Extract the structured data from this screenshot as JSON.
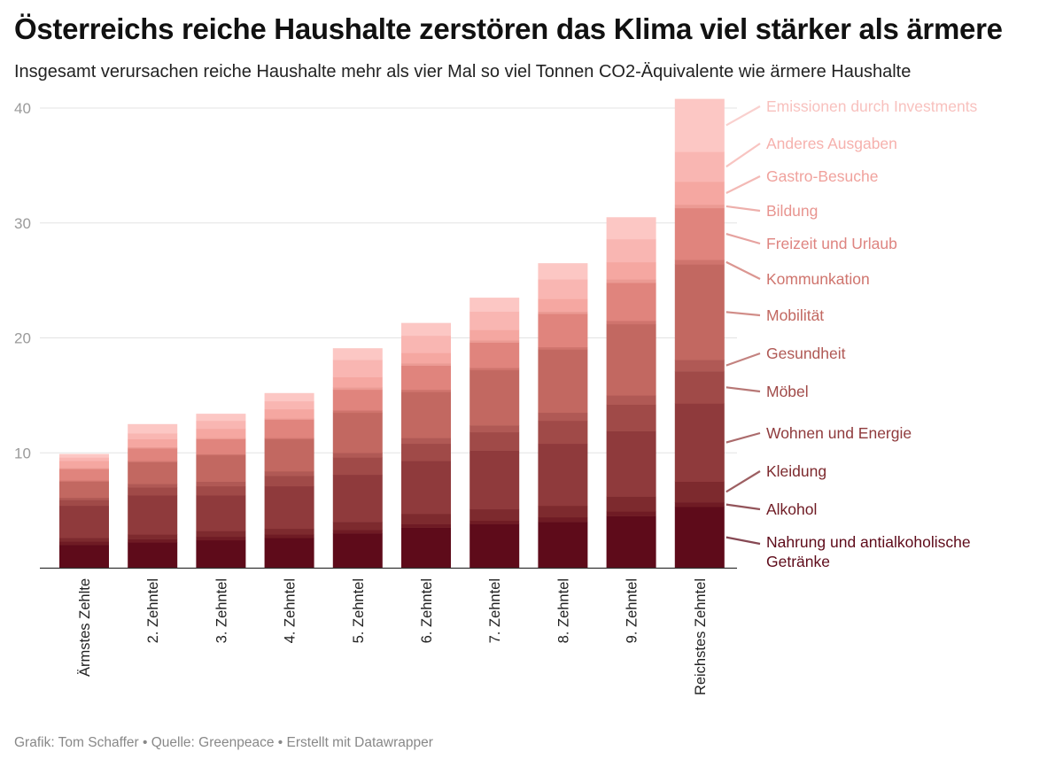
{
  "title": "Österreichs reiche Haushalte zerstören das Klima viel stärker als ärmere",
  "subtitle": "Insgesamt verursachen reiche Haushalte mehr als vier Mal so viel Tonnen CO2-Äquivalente wie ärmere Haushalte",
  "footer": "Grafik: Tom Schaffer • Quelle: Greenpeace • Erstellt mit Datawrapper",
  "chart_data": {
    "type": "bar",
    "stacked": true,
    "title": "Österreichs reiche Haushalte zerstören das Klima viel stärker als ärmere",
    "xlabel": "",
    "ylabel": "",
    "ylim": [
      0,
      40.8
    ],
    "yticks": [
      10,
      20,
      30,
      40
    ],
    "grid": true,
    "categories": [
      "Ärmstes Zehlte",
      "2. Zehntel",
      "3. Zehntel",
      "4. Zehntel",
      "5. Zehntel",
      "6. Zehntel",
      "7. Zehntel",
      "8. Zehntel",
      "9. Zehntel",
      "Reichstes Zehntel"
    ],
    "series": [
      {
        "name": "Nahrung und antialkoholische Getränke",
        "color": "#5e0b1a",
        "label_color": "#5e0b1a",
        "values": [
          2.0,
          2.2,
          2.4,
          2.6,
          3.0,
          3.5,
          3.8,
          4.0,
          4.5,
          5.3
        ]
      },
      {
        "name": "Alkohol",
        "color": "#6f1b24",
        "label_color": "#6f1b24",
        "values": [
          0.3,
          0.3,
          0.3,
          0.3,
          0.3,
          0.3,
          0.3,
          0.4,
          0.4,
          0.4
        ]
      },
      {
        "name": "Kleidung",
        "color": "#7d2a2e",
        "label_color": "#7d2a2e",
        "values": [
          0.3,
          0.4,
          0.5,
          0.5,
          0.7,
          0.9,
          1.0,
          1.0,
          1.3,
          1.8
        ]
      },
      {
        "name": "Wohnen und Energie",
        "color": "#8f3a3c",
        "label_color": "#8f3a3c",
        "values": [
          2.8,
          3.4,
          3.1,
          3.7,
          4.1,
          4.6,
          5.1,
          5.4,
          5.7,
          6.8
        ]
      },
      {
        "name": "Möbel",
        "color": "#a04a48",
        "label_color": "#a04a48",
        "values": [
          0.5,
          0.7,
          0.8,
          0.9,
          1.5,
          1.5,
          1.6,
          2.0,
          2.3,
          2.8
        ]
      },
      {
        "name": "Gesundheit",
        "color": "#b05955",
        "label_color": "#b05955",
        "values": [
          0.2,
          0.3,
          0.4,
          0.4,
          0.4,
          0.5,
          0.6,
          0.7,
          0.8,
          1.0
        ]
      },
      {
        "name": "Mobilität",
        "color": "#c26861",
        "label_color": "#c26861",
        "values": [
          1.4,
          1.9,
          2.3,
          2.8,
          3.5,
          4.0,
          4.8,
          5.5,
          6.2,
          8.3
        ]
      },
      {
        "name": "Kommunkation",
        "color": "#cf746d",
        "label_color": "#cf746d",
        "values": [
          0.1,
          0.1,
          0.1,
          0.1,
          0.2,
          0.2,
          0.2,
          0.2,
          0.3,
          0.4
        ]
      },
      {
        "name": "Freizeit und Urlaub",
        "color": "#e0847d",
        "label_color": "#de8480",
        "values": [
          1.0,
          1.1,
          1.3,
          1.6,
          1.8,
          2.1,
          2.2,
          2.9,
          3.3,
          4.5
        ]
      },
      {
        "name": "Bildung",
        "color": "#eb9a93",
        "label_color": "#e89590",
        "values": [
          0.1,
          0.1,
          0.1,
          0.1,
          0.2,
          0.2,
          0.2,
          0.2,
          0.3,
          0.3
        ]
      },
      {
        "name": "Gastro-Besuche",
        "color": "#f5a7a1",
        "label_color": "#f0a29d",
        "values": [
          0.6,
          0.7,
          0.8,
          0.8,
          0.9,
          0.9,
          0.9,
          1.1,
          1.5,
          2.0
        ]
      },
      {
        "name": "Anderes Ausgaben",
        "color": "#f9b6b2",
        "label_color": "#f6b1ad",
        "values": [
          0.3,
          0.5,
          0.7,
          0.7,
          1.5,
          1.5,
          1.6,
          1.7,
          2.0,
          2.6
        ]
      },
      {
        "name": "Emissionen durch Investments",
        "color": "#fcc7c4",
        "label_color": "#f8c1be",
        "values": [
          0.3,
          0.8,
          0.6,
          0.7,
          1.0,
          1.1,
          1.2,
          1.4,
          1.9,
          4.6
        ]
      }
    ]
  }
}
